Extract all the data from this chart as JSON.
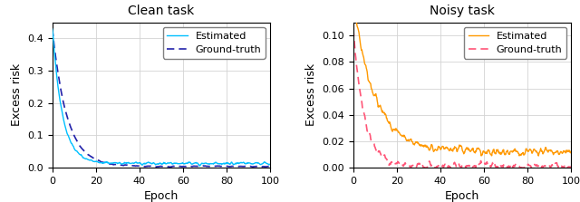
{
  "title_clean": "Clean task",
  "title_noisy": "Noisy task",
  "xlabel": "Epoch",
  "ylabel": "Excess risk",
  "legend_estimated": "Estimated",
  "legend_ground_truth": "Ground-truth",
  "clean_estimated_color": "#00c0ff",
  "clean_gt_color": "#2222aa",
  "noisy_estimated_color": "#ff9900",
  "noisy_gt_color": "#ff5577",
  "xlim": [
    0,
    100
  ],
  "clean_ylim": [
    0,
    0.45
  ],
  "noisy_ylim": [
    0,
    0.11
  ],
  "clean_yticks": [
    0.0,
    0.1,
    0.2,
    0.3,
    0.4
  ],
  "noisy_yticks": [
    0.0,
    0.02,
    0.04,
    0.06,
    0.08,
    0.1
  ],
  "xticks": [
    0,
    20,
    40,
    60,
    80,
    100
  ],
  "n_points": 500
}
